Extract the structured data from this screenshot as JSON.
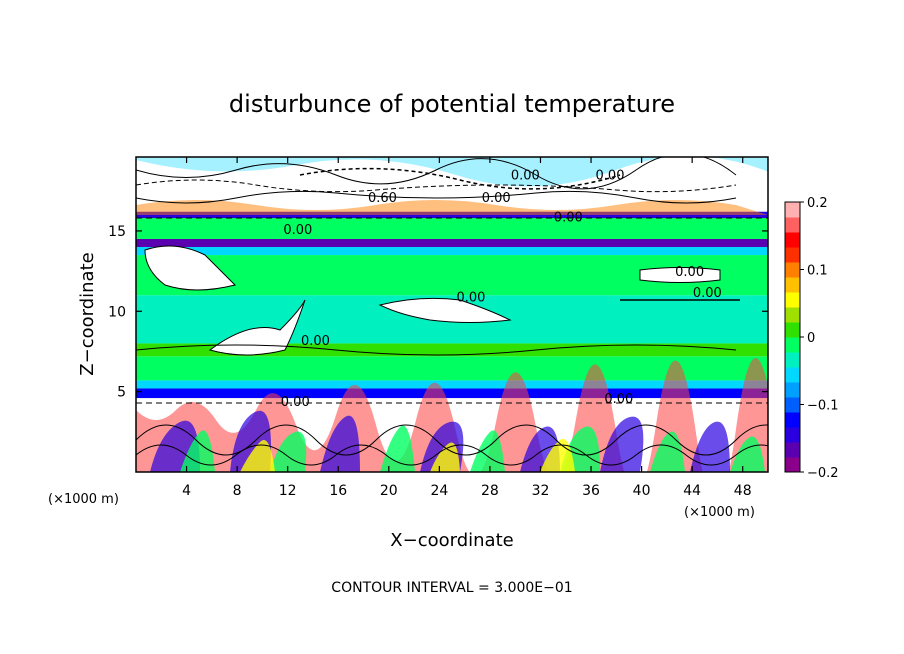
{
  "chart_data": {
    "type": "heatmap",
    "title": "disturbunce of potential temperature",
    "xlabel": "X−coordinate",
    "ylabel": "Z−coordinate",
    "x_unit_left": "(×1000 m)",
    "x_unit_right": "(×1000 m)",
    "xlim": [
      0,
      50
    ],
    "ylim": [
      0,
      19.6
    ],
    "x_ticks": [
      4,
      8,
      12,
      16,
      20,
      24,
      28,
      32,
      36,
      40,
      44,
      48
    ],
    "y_ticks": [
      5,
      10,
      15
    ],
    "colorbar": {
      "range": [
        -0.2,
        0.2
      ],
      "labels": [
        "0.2",
        "0.1",
        "0",
        "−0.1",
        "−0.2"
      ],
      "label_values": [
        0.2,
        0.1,
        0,
        -0.1,
        -0.2
      ],
      "colors": [
        "#8b008b",
        "#5a00b0",
        "#2a00e0",
        "#0000ff",
        "#0060ff",
        "#00a0ff",
        "#00d8ff",
        "#00f0c0",
        "#00ff60",
        "#30e000",
        "#a0e000",
        "#ffff00",
        "#ffc000",
        "#ff8000",
        "#ff3000",
        "#ff0000",
        "#ff6060",
        "#ffb0b0"
      ]
    },
    "bands": [
      {
        "z0": 0.0,
        "z1": 4.6,
        "color": "#ffffff"
      },
      {
        "z0": 4.6,
        "z1": 5.2,
        "color": "#0000ff"
      },
      {
        "z0": 5.2,
        "z1": 5.7,
        "color": "#00d8ff"
      },
      {
        "z0": 5.7,
        "z1": 7.2,
        "color": "#00ff60"
      },
      {
        "z0": 7.2,
        "z1": 8.0,
        "color": "#30e000"
      },
      {
        "z0": 8.0,
        "z1": 11.0,
        "color": "#00f0c0"
      },
      {
        "z0": 11.0,
        "z1": 13.5,
        "color": "#00ff60"
      },
      {
        "z0": 13.5,
        "z1": 14.0,
        "color": "#00d8ff"
      },
      {
        "z0": 14.0,
        "z1": 14.5,
        "color": "#5a00b0"
      },
      {
        "z0": 14.5,
        "z1": 15.8,
        "color": "#00ff60"
      },
      {
        "z0": 15.8,
        "z1": 16.2,
        "color": "#2a00e0"
      },
      {
        "z0": 16.2,
        "z1": 19.6,
        "color": "#ffffff"
      }
    ],
    "contour_labels": [
      {
        "x": 19.5,
        "z": 16.8,
        "text": "0.60"
      },
      {
        "x": 28.5,
        "z": 16.8,
        "text": "0.00"
      },
      {
        "x": 30.8,
        "z": 18.2,
        "text": "0.00"
      },
      {
        "x": 37.5,
        "z": 18.2,
        "text": "0.00"
      },
      {
        "x": 34.2,
        "z": 15.6,
        "text": "0.00"
      },
      {
        "x": 12.8,
        "z": 14.8,
        "text": "0.00"
      },
      {
        "x": 26.5,
        "z": 10.6,
        "text": "0.00"
      },
      {
        "x": 14.2,
        "z": 7.9,
        "text": "0.00"
      },
      {
        "x": 43.8,
        "z": 12.2,
        "text": "0.00"
      },
      {
        "x": 45.2,
        "z": 10.9,
        "text": "0.00"
      },
      {
        "x": 38.2,
        "z": 4.3,
        "text": "0.00"
      },
      {
        "x": 12.6,
        "z": 4.1,
        "text": "0.00"
      }
    ],
    "footer": "CONTOUR INTERVAL = 3.000E−01"
  }
}
